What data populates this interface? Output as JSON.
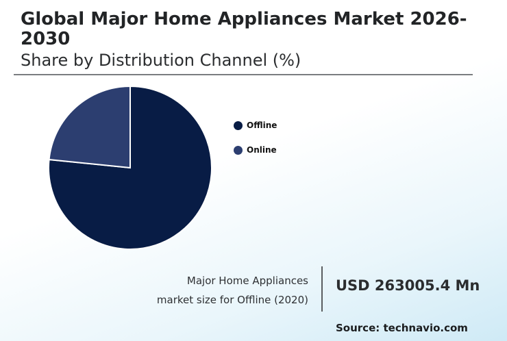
{
  "header": {
    "title": "Global Major Home Appliances Market 2026-2030",
    "subtitle": "Share by Distribution Channel (%)"
  },
  "chart_data": {
    "type": "pie",
    "title": "Global Major Home Appliances Market 2026-2030",
    "subtitle": "Share by Distribution Channel (%)",
    "legend_position": "right",
    "series": [
      {
        "name": "Offline",
        "value": 76.6,
        "color": "#081c45"
      },
      {
        "name": "Online",
        "value": 23.4,
        "color": "#2c3e70"
      }
    ]
  },
  "legend": {
    "items": [
      {
        "label": "Offline",
        "color": "#081c45"
      },
      {
        "label": "Online",
        "color": "#2c3e70"
      }
    ]
  },
  "metric": {
    "label_line1": "Major Home Appliances",
    "label_line2": "market size for Offline (2020)",
    "value": "USD 263005.4 Mn"
  },
  "source": "Source: technavio.com"
}
